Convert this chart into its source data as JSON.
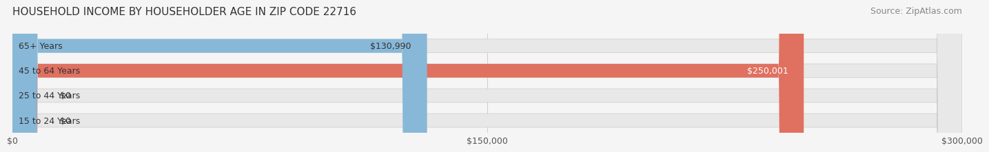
{
  "title": "HOUSEHOLD INCOME BY HOUSEHOLDER AGE IN ZIP CODE 22716",
  "source": "Source: ZipAtlas.com",
  "categories": [
    "15 to 24 Years",
    "25 to 44 Years",
    "45 to 64 Years",
    "65+ Years"
  ],
  "values": [
    0,
    0,
    250001,
    130990
  ],
  "bar_colors": [
    "#f08080",
    "#f5c87a",
    "#e07060",
    "#87b8d8"
  ],
  "bar_label_colors": [
    "#333333",
    "#333333",
    "#ffffff",
    "#333333"
  ],
  "value_labels": [
    "$0",
    "$0",
    "$250,001",
    "$130,990"
  ],
  "xlim": [
    0,
    300000
  ],
  "xticks": [
    0,
    150000,
    300000
  ],
  "xtick_labels": [
    "$0",
    "$150,000",
    "$300,000"
  ],
  "background_color": "#f5f5f5",
  "bar_background_color": "#e8e8e8",
  "title_fontsize": 11,
  "source_fontsize": 9,
  "tick_fontsize": 9,
  "label_fontsize": 9,
  "bar_height": 0.55
}
